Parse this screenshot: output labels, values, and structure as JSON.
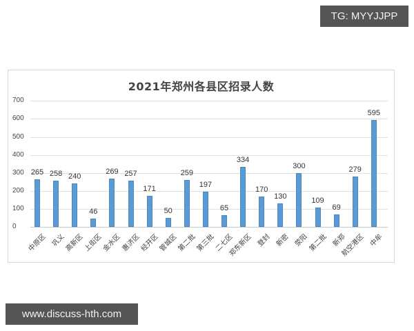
{
  "watermarks": {
    "top_right": "TG: MYYJJPP",
    "bottom_left": "www.discuss-hth.com"
  },
  "chart_data": {
    "type": "bar",
    "title": "2021年郑州各县区招录人数",
    "xlabel": "",
    "ylabel": "",
    "ylim": [
      0,
      700
    ],
    "yticks": [
      "0",
      "100",
      "200",
      "300",
      "400",
      "500",
      "600",
      "700"
    ],
    "grid": true,
    "legend": "none",
    "bar_color": "#5b9bd5",
    "categories": [
      "中原区",
      "巩义",
      "高新区",
      "上街区",
      "金水区",
      "惠济区",
      "经开区",
      "管城区",
      "第二批",
      "第三批",
      "二七区",
      "郑东新区",
      "登封",
      "新密",
      "荥阳",
      "第二批",
      "新郑",
      "航空港区",
      "中牟"
    ],
    "values": [
      265,
      258,
      240,
      46,
      269,
      257,
      171,
      50,
      259,
      197,
      65,
      334,
      170,
      130,
      300,
      109,
      69,
      279,
      595
    ],
    "value_labels": [
      "265",
      "258",
      "240",
      "46",
      "269",
      "257",
      "171",
      "50",
      "259",
      "197",
      "65",
      "334",
      "170",
      "130",
      "300",
      "109",
      "69",
      "279",
      "595"
    ]
  }
}
